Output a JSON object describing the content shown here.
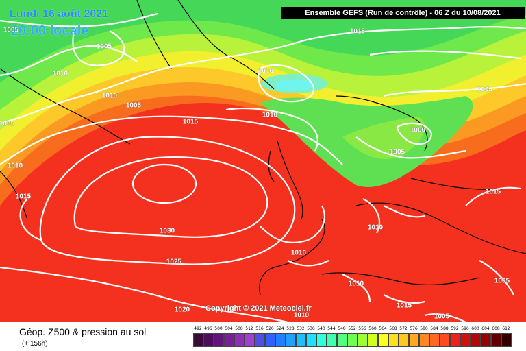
{
  "header": {
    "date": "Lundi 16 août 2021",
    "local_time": "20:00 locale",
    "run_info": "Ensemble GEFS  (Run de contrôle)  -  06 Z du 10/08/2021"
  },
  "copyright": "Copyright © 2021 Meteociel.fr",
  "footer": {
    "parameter": "Géop. Z500 & pression au sol",
    "lead_time": "(+ 156h)"
  },
  "isobar_labels": [
    "1005",
    "1015",
    "1005",
    "1010",
    "1010",
    "1005",
    "1015",
    "1010",
    "1010",
    "1005",
    "1005",
    "1000",
    "1005",
    "1010",
    "1015",
    "1010",
    "1030",
    "1025",
    "1010",
    "1010",
    "1015",
    "1005",
    "1020",
    "1010",
    "1015",
    "1005"
  ],
  "scale": {
    "ticks": [
      "492",
      "496",
      "500",
      "504",
      "508",
      "512",
      "516",
      "520",
      "524",
      "528",
      "532",
      "536",
      "540",
      "544",
      "548",
      "552",
      "556",
      "560",
      "564",
      "568",
      "572",
      "576",
      "580",
      "584",
      "588",
      "592",
      "596",
      "600",
      "604",
      "608",
      "612"
    ],
    "colors": [
      "#3a0a3a",
      "#4d0f5a",
      "#62157a",
      "#7a1f9a",
      "#8f2fb8",
      "#a040d0",
      "#5050e0",
      "#3060ff",
      "#2080ff",
      "#20a0ff",
      "#20c0ff",
      "#20e0ff",
      "#30ffe0",
      "#40ffb0",
      "#50ff80",
      "#70ff50",
      "#a0ff30",
      "#d0ff20",
      "#ffff20",
      "#ffe020",
      "#ffc820",
      "#ffa820",
      "#ff8820",
      "#ff6a20",
      "#ff4a20",
      "#f02020",
      "#d01010",
      "#b00808",
      "#900404",
      "#600000",
      "#300000"
    ]
  }
}
